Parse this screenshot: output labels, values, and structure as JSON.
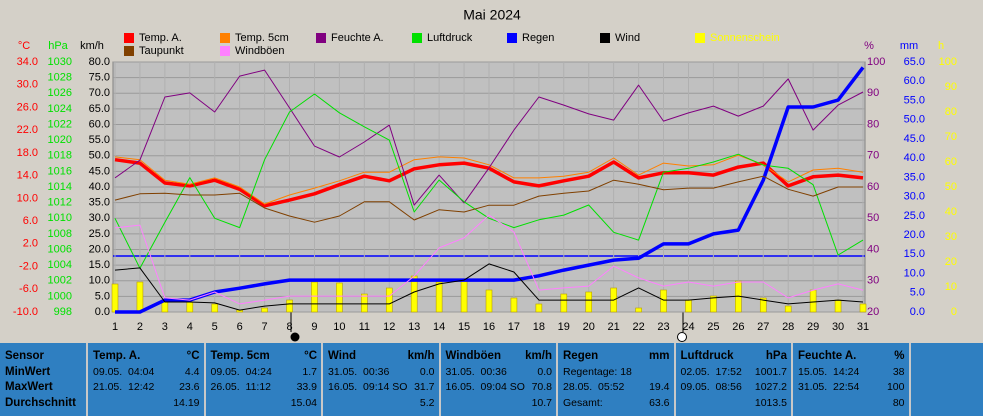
{
  "chart_data": {
    "type": "line",
    "title": "Mai 2024",
    "x": [
      1,
      2,
      3,
      4,
      5,
      6,
      7,
      8,
      9,
      10,
      11,
      12,
      13,
      14,
      15,
      16,
      17,
      18,
      19,
      20,
      21,
      22,
      23,
      24,
      25,
      26,
      27,
      28,
      29,
      30,
      31
    ],
    "xlim": [
      1,
      31
    ],
    "axes": {
      "temp": {
        "label": "°C",
        "color": "#ff0000",
        "lim": [
          -10,
          34
        ],
        "ticks": [
          {
            "value": -10,
            "label": "-10.0"
          },
          {
            "value": -6,
            "label": "-6.0"
          },
          {
            "value": -2,
            "label": "-2.0"
          },
          {
            "value": 2,
            "label": "2.0"
          },
          {
            "value": 6,
            "label": "6.0"
          },
          {
            "value": 10,
            "label": "10.0"
          },
          {
            "value": 14,
            "label": "14.0"
          },
          {
            "value": 18,
            "label": "18.0"
          },
          {
            "value": 22,
            "label": "22.0"
          },
          {
            "value": 26,
            "label": "26.0"
          },
          {
            "value": 30,
            "label": "30.0"
          },
          {
            "value": 34,
            "label": "34.0"
          }
        ]
      },
      "hpa": {
        "label": "hPa",
        "color": "#00e000",
        "lim": [
          998,
          1030
        ],
        "ticks": [
          998,
          1000,
          1002,
          1004,
          1006,
          1008,
          1010,
          1012,
          1014,
          1016,
          1018,
          1020,
          1022,
          1024,
          1026,
          1028,
          1030
        ]
      },
      "kmh": {
        "label": "km/h",
        "color": "#000000",
        "lim": [
          0,
          80
        ],
        "grid": true,
        "ticks": [
          {
            "value": 0,
            "label": "0.0"
          },
          {
            "value": 5,
            "label": "5.0"
          },
          {
            "value": 10,
            "label": "10.0"
          },
          {
            "value": 15,
            "label": "15.0"
          },
          {
            "value": 20,
            "label": "20.0"
          },
          {
            "value": 25,
            "label": "25.0"
          },
          {
            "value": 30,
            "label": "30.0"
          },
          {
            "value": 35,
            "label": "35.0"
          },
          {
            "value": 40,
            "label": "40.0"
          },
          {
            "value": 45,
            "label": "45.0"
          },
          {
            "value": 50,
            "label": "50.0"
          },
          {
            "value": 55,
            "label": "55.0"
          },
          {
            "value": 60,
            "label": "60.0"
          },
          {
            "value": 65,
            "label": "65.0"
          },
          {
            "value": 70,
            "label": "70.0"
          },
          {
            "value": 75,
            "label": "75.0"
          },
          {
            "value": 80,
            "label": "80.0"
          }
        ]
      },
      "pct": {
        "label": "%",
        "color": "#800080",
        "lim": [
          20,
          100
        ],
        "ticks": [
          20,
          30,
          40,
          50,
          60,
          70,
          80,
          90,
          100
        ]
      },
      "mm": {
        "label": "mm",
        "color": "#0000ff",
        "lim": [
          0,
          65
        ],
        "ticks": [
          {
            "value": 0,
            "label": "0.0"
          },
          {
            "value": 5,
            "label": "5.0"
          },
          {
            "value": 10,
            "label": "10.0"
          },
          {
            "value": 15,
            "label": "15.0"
          },
          {
            "value": 20,
            "label": "20.0"
          },
          {
            "value": 25,
            "label": "25.0"
          },
          {
            "value": 30,
            "label": "30.0"
          },
          {
            "value": 35,
            "label": "35.0"
          },
          {
            "value": 40,
            "label": "40.0"
          },
          {
            "value": 45,
            "label": "45.0"
          },
          {
            "value": 50,
            "label": "50.0"
          },
          {
            "value": 55,
            "label": "55.0"
          },
          {
            "value": 60,
            "label": "60.0"
          },
          {
            "value": 65,
            "label": "65.0"
          }
        ]
      },
      "h": {
        "label": "h",
        "color": "#ffff00",
        "lim": [
          0,
          100
        ],
        "ticks": [
          0,
          10,
          20,
          30,
          40,
          50,
          60,
          70,
          80,
          90,
          100
        ]
      }
    },
    "series": [
      {
        "name": "Temp. A.",
        "color": "#ff0000",
        "axis": "temp",
        "values": [
          16.8,
          16.2,
          12.7,
          12.2,
          13.2,
          11.6,
          8.7,
          9.7,
          10.8,
          12.4,
          13.9,
          13.1,
          15.2,
          15.9,
          16.2,
          15.3,
          12.9,
          12.2,
          13.1,
          13.9,
          16.4,
          13.6,
          14.5,
          14.5,
          14.1,
          15.5,
          16.2,
          12.2,
          13.8,
          14.1,
          13.6
        ]
      },
      {
        "name": "Temp. 5cm",
        "color": "#ff8000",
        "axis": "temp",
        "values": [
          17.3,
          16.8,
          13.2,
          12.5,
          13.6,
          12.0,
          9.0,
          10.6,
          11.8,
          13.1,
          14.6,
          14.6,
          16.8,
          17.3,
          17.1,
          15.9,
          13.6,
          13.6,
          13.9,
          14.6,
          17.1,
          14.1,
          16.2,
          15.7,
          15.9,
          17.6,
          15.9,
          12.9,
          15.0,
          15.3,
          14.6
        ]
      },
      {
        "name": "Feuchte A.",
        "color": "#800080",
        "axis": "pct",
        "values": [
          62.9,
          68.6,
          88.8,
          90.1,
          84.0,
          95.5,
          97.4,
          85.3,
          73.1,
          69.6,
          74.4,
          79.8,
          54.2,
          63.8,
          54.9,
          66.1,
          78.2,
          88.8,
          86.2,
          83.4,
          81.4,
          92.6,
          81.1,
          83.7,
          85.9,
          82.7,
          85.9,
          94.6,
          78.2,
          86.2,
          90.4
        ]
      },
      {
        "name": "Luftdruck",
        "color": "#00e000",
        "axis": "hpa",
        "values": [
          1010.0,
          1003.6,
          1009.5,
          1015.2,
          1010.0,
          1008.8,
          1017.5,
          1023.6,
          1025.9,
          1023.5,
          1021.7,
          1020.0,
          1010.8,
          1014.9,
          1012.1,
          1010.0,
          1008.8,
          1009.8,
          1010.4,
          1011.7,
          1008.2,
          1007.2,
          1015.9,
          1016.4,
          1017.2,
          1018.2,
          1016.8,
          1016.4,
          1014.3,
          1005.3,
          1007.2
        ]
      },
      {
        "name": "Regen",
        "color": "#0000ff",
        "axis": "mm",
        "values": [
          0,
          0,
          3.1,
          3.1,
          5.2,
          6.2,
          7.3,
          8.3,
          8.3,
          8.3,
          8.3,
          8.3,
          8.3,
          8.3,
          8.3,
          8.3,
          8.3,
          9.4,
          10.9,
          12.2,
          13.5,
          14.0,
          17.7,
          17.7,
          20.3,
          21.3,
          34.3,
          53.3,
          53.3,
          55.1,
          63.6
        ]
      },
      {
        "name": "Wind",
        "color": "#000000",
        "axis": "kmh",
        "values": [
          13.4,
          14.1,
          3.2,
          3.2,
          2.9,
          0.6,
          1.9,
          2.6,
          2.6,
          2.6,
          2.6,
          2.6,
          6.4,
          9.0,
          10.2,
          15.4,
          12.8,
          3.8,
          3.8,
          3.8,
          3.8,
          7.7,
          3.8,
          3.8,
          4.5,
          5.1,
          3.8,
          2.6,
          3.2,
          3.8,
          3.2
        ]
      },
      {
        "name": "Sonnenschein",
        "color": "#ffff00",
        "axis": "h",
        "type": "bar",
        "values": [
          11.2,
          12.0,
          4.8,
          4.0,
          3.2,
          0.8,
          1.6,
          4.8,
          12.0,
          11.6,
          7.2,
          9.6,
          14.4,
          12.0,
          12.8,
          8.8,
          5.6,
          3.2,
          7.2,
          8.0,
          9.6,
          1.6,
          8.8,
          4.8,
          6.4,
          12.4,
          5.6,
          2.4,
          8.8,
          4.8,
          3.2
        ]
      },
      {
        "name": "Taupunkt",
        "color": "#804000",
        "axis": "temp",
        "values": [
          9.7,
          10.8,
          10.9,
          10.6,
          10.6,
          10.9,
          8.3,
          6.9,
          5.8,
          6.9,
          9.4,
          9.4,
          6.2,
          8.0,
          7.6,
          8.8,
          8.8,
          10.4,
          10.9,
          11.3,
          13.2,
          12.5,
          11.5,
          11.8,
          11.8,
          12.9,
          13.9,
          11.6,
          10.4,
          12.0,
          12.0
        ]
      },
      {
        "name": "Windböen",
        "color": "#ff80ff",
        "axis": "kmh",
        "values": [
          26.9,
          27.8,
          4.5,
          3.8,
          6.4,
          2.6,
          3.8,
          5.1,
          5.1,
          5.1,
          5.1,
          5.1,
          11.5,
          20.5,
          23.7,
          31.0,
          25.6,
          7.0,
          7.7,
          8.3,
          14.7,
          10.9,
          8.3,
          9.6,
          8.3,
          9.6,
          9.6,
          4.5,
          7.0,
          9.0,
          7.0
        ]
      }
    ]
  },
  "summary": {
    "row_labels": [
      "Sensor",
      "MinWert",
      "MaxWert",
      "Durchschnitt"
    ],
    "columns": [
      {
        "name": "Temp. A.",
        "unit": "°C",
        "min": {
          "left": "09.05.  04:04",
          "right": "4.4"
        },
        "max": {
          "left": "21.05.  12:42",
          "right": "23.6"
        },
        "avg": {
          "right": "14.19"
        }
      },
      {
        "name": "Temp. 5cm",
        "unit": "°C",
        "min": {
          "left": "09.05.  04:24",
          "right": "1.7"
        },
        "max": {
          "left": "26.05.  11:12",
          "right": "33.9"
        },
        "avg": {
          "right": "15.04"
        }
      },
      {
        "name": "Wind",
        "unit": "km/h",
        "min": {
          "left": "31.05.  00:36",
          "right": "0.0"
        },
        "max": {
          "left": "16.05.  09:14 SO",
          "right": "31.7"
        },
        "avg": {
          "right": "5.2"
        }
      },
      {
        "name": "Windböen",
        "unit": "km/h",
        "min": {
          "left": "31.05.  00:36",
          "right": "0.0"
        },
        "max": {
          "left": "16.05.  09:04 SO",
          "right": "70.8"
        },
        "avg": {
          "right": "10.7"
        }
      },
      {
        "name": "Regen",
        "unit": "mm",
        "min": {
          "left": "Regentage: 18"
        },
        "max": {
          "left": "28.05.  05:52",
          "right": "19.4"
        },
        "avg": {
          "left": "Gesamt:",
          "right": "63.6"
        }
      },
      {
        "name": "Luftdruck",
        "unit": "hPa",
        "min": {
          "left": "02.05.  17:52",
          "right": "1001.7"
        },
        "max": {
          "left": "09.05.  08:56",
          "right": "1027.2"
        },
        "avg": {
          "right": "1013.5"
        }
      },
      {
        "name": "Feuchte A.",
        "unit": "%",
        "min": {
          "left": "15.05.  14:24",
          "right": "38"
        },
        "max": {
          "left": "31.05.  22:54",
          "right": "100"
        },
        "avg": {
          "right": "80"
        }
      }
    ]
  }
}
